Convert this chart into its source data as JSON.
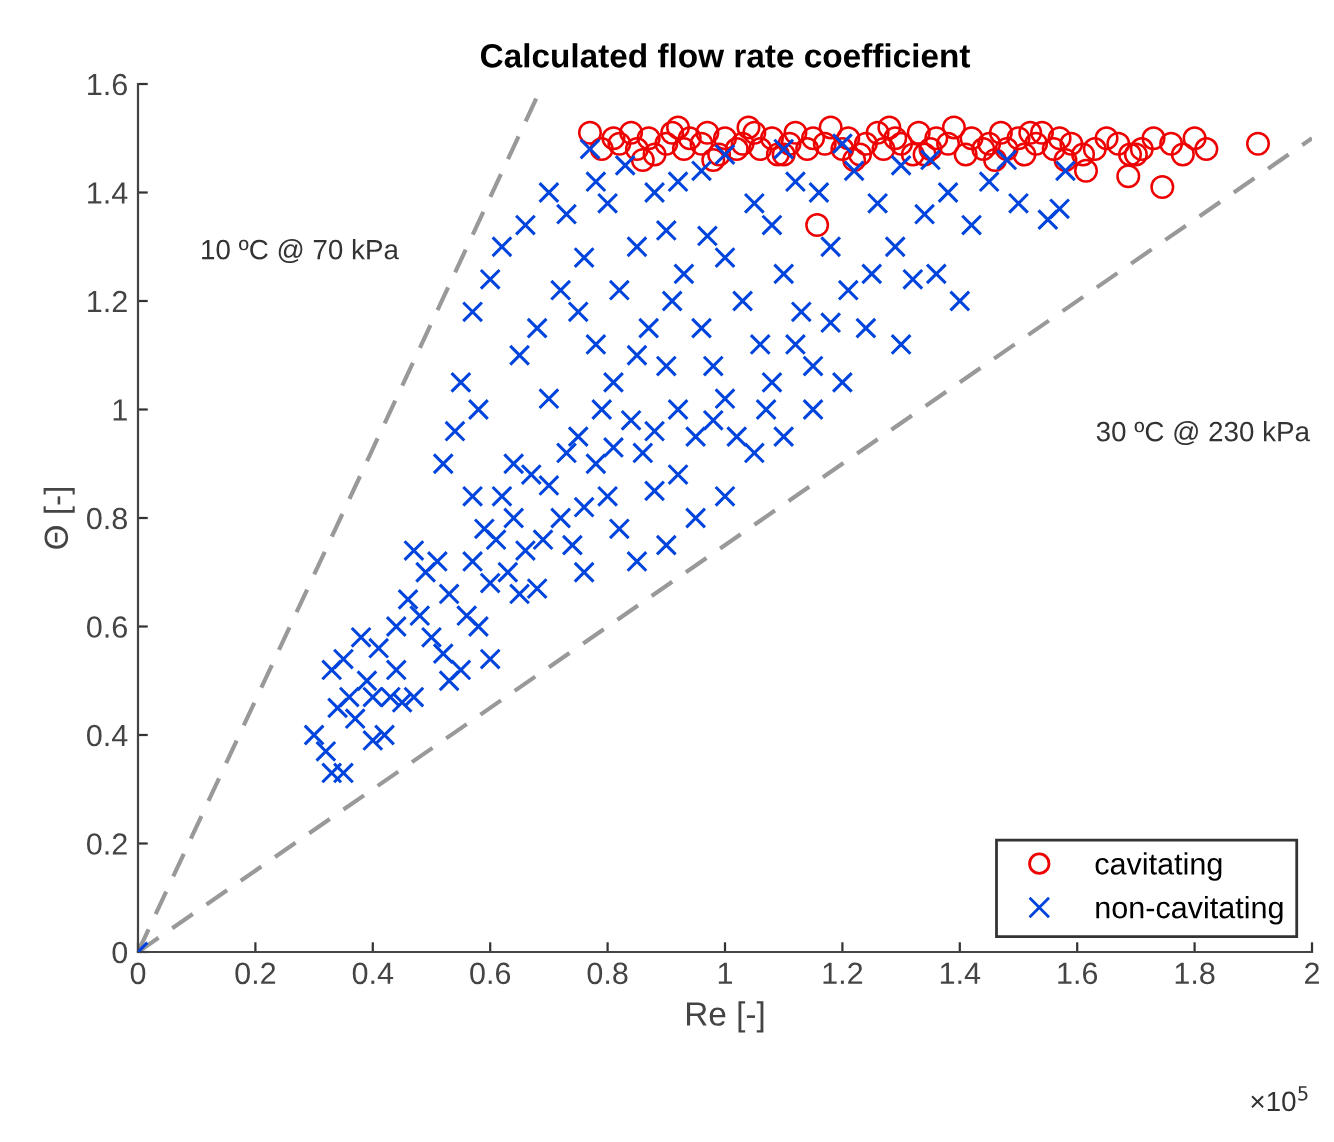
{
  "chart_data": {
    "type": "scatter",
    "title": "Calculated flow rate coefficient",
    "xlabel": "Re [-]",
    "ylabel": "Θ [-]",
    "xlim": [
      0,
      2
    ],
    "xticks": [
      0,
      0.2,
      0.4,
      0.6,
      0.8,
      1,
      1.2,
      1.4,
      1.6,
      1.8,
      2
    ],
    "ylim": [
      0,
      1.6
    ],
    "yticks": [
      0,
      0.2,
      0.4,
      0.6,
      0.8,
      1,
      1.2,
      1.4,
      1.6
    ],
    "grid": false,
    "legend": "bottom right",
    "annotations": [
      "10 ºC @ 70 kPa",
      "30 ºC @ 230 kPa",
      "×10$^{5}$"
    ],
    "series": [
      {
        "name": "cavitating",
        "color": "#ee0000",
        "marker": "circle",
        "x": [
          0.77,
          0.79,
          0.81,
          0.82,
          0.84,
          0.85,
          0.87,
          0.88,
          0.9,
          0.91,
          0.93,
          0.94,
          0.96,
          0.97,
          0.99,
          1.0,
          1.02,
          1.03,
          1.05,
          1.06,
          1.08,
          1.09,
          1.11,
          1.12,
          1.14,
          1.15,
          1.17,
          1.18,
          1.2,
          1.21,
          1.23,
          1.24,
          1.26,
          1.27,
          1.29,
          1.3,
          1.32,
          1.33,
          1.35,
          1.36,
          1.38,
          1.39,
          1.41,
          1.42,
          1.44,
          1.45,
          1.47,
          1.48,
          1.5,
          1.51,
          1.53,
          1.54,
          1.56,
          1.57,
          1.59,
          1.61,
          1.63,
          1.65,
          1.67,
          1.69,
          1.71,
          1.73,
          1.76,
          1.78,
          1.8,
          1.82,
          1.908,
          1.745,
          1.687,
          1.615,
          1.157,
          0.86,
          0.98,
          1.1,
          1.22,
          1.34,
          1.46,
          1.58,
          1.7,
          0.92,
          1.04,
          1.28,
          1.52
        ],
        "values": [
          1.51,
          1.48,
          1.5,
          1.49,
          1.51,
          1.48,
          1.5,
          1.47,
          1.49,
          1.51,
          1.48,
          1.5,
          1.49,
          1.51,
          1.47,
          1.5,
          1.48,
          1.49,
          1.51,
          1.48,
          1.5,
          1.47,
          1.49,
          1.51,
          1.48,
          1.5,
          1.49,
          1.52,
          1.48,
          1.5,
          1.47,
          1.49,
          1.51,
          1.48,
          1.5,
          1.49,
          1.47,
          1.51,
          1.48,
          1.5,
          1.49,
          1.52,
          1.47,
          1.5,
          1.48,
          1.49,
          1.51,
          1.48,
          1.5,
          1.47,
          1.49,
          1.51,
          1.48,
          1.5,
          1.49,
          1.47,
          1.48,
          1.5,
          1.49,
          1.47,
          1.48,
          1.5,
          1.49,
          1.47,
          1.5,
          1.48,
          1.49,
          1.41,
          1.43,
          1.44,
          1.34,
          1.46,
          1.46,
          1.47,
          1.46,
          1.47,
          1.46,
          1.46,
          1.47,
          1.52,
          1.52,
          1.52,
          1.51
        ]
      },
      {
        "name": "non-cavitating",
        "color": "#0044dd",
        "marker": "cross",
        "x": [
          0.3,
          0.32,
          0.33,
          0.35,
          0.34,
          0.36,
          0.33,
          0.35,
          0.37,
          0.4,
          0.42,
          0.39,
          0.41,
          0.43,
          0.45,
          0.47,
          0.44,
          0.46,
          0.48,
          0.5,
          0.52,
          0.53,
          0.55,
          0.49,
          0.47,
          0.51,
          0.53,
          0.56,
          0.58,
          0.6,
          0.57,
          0.59,
          0.61,
          0.63,
          0.65,
          0.62,
          0.64,
          0.66,
          0.68,
          0.67,
          0.7,
          0.72,
          0.74,
          0.76,
          0.73,
          0.75,
          0.78,
          0.8,
          0.82,
          0.79,
          0.81,
          0.84,
          0.86,
          0.88,
          0.85,
          0.87,
          0.9,
          0.92,
          0.95,
          0.91,
          0.93,
          0.96,
          0.98,
          1.0,
          1.02,
          0.97,
          1.0,
          1.03,
          1.06,
          1.08,
          1.05,
          1.08,
          1.1,
          1.13,
          1.15,
          1.12,
          1.16,
          1.18,
          1.21,
          1.24,
          1.22,
          1.26,
          1.29,
          1.32,
          1.34,
          1.38,
          1.42,
          1.45,
          1.5,
          1.55,
          1.57,
          1.58,
          1.48,
          1.35,
          1.3,
          0.57,
          0.6,
          0.62,
          0.66,
          0.7,
          0.73,
          0.77,
          0.78,
          0.8,
          0.83,
          0.88,
          0.92,
          0.96,
          1.0,
          1.1,
          1.2,
          0.55,
          0.58,
          0.52,
          0.54,
          0.65,
          0.68,
          0.72,
          0.75,
          0.7,
          0.76,
          0.85,
          0.9,
          0.82,
          0.78,
          0.95,
          1.0,
          1.05,
          1.1,
          1.15,
          1.2,
          1.3,
          1.4,
          1.36,
          0.9,
          0.85,
          0.92,
          0.88,
          0.98,
          1.07,
          1.12,
          1.18,
          1.25,
          0.81,
          0.76,
          0.69,
          0.64,
          0.6,
          0.57,
          0.44,
          0.38,
          0.4,
          0
        ],
        "values": [
          0.4,
          0.37,
          0.33,
          0.33,
          0.45,
          0.47,
          0.52,
          0.54,
          0.43,
          0.39,
          0.4,
          0.5,
          0.56,
          0.47,
          0.46,
          0.47,
          0.6,
          0.65,
          0.62,
          0.58,
          0.55,
          0.5,
          0.52,
          0.7,
          0.74,
          0.72,
          0.66,
          0.62,
          0.6,
          0.54,
          0.72,
          0.78,
          0.76,
          0.7,
          0.66,
          0.84,
          0.8,
          0.74,
          0.67,
          0.88,
          0.86,
          0.8,
          0.75,
          0.7,
          0.92,
          0.95,
          0.9,
          0.84,
          0.78,
          1.0,
          1.05,
          0.98,
          0.92,
          0.85,
          1.1,
          1.15,
          1.08,
          1.0,
          0.95,
          1.2,
          1.25,
          1.15,
          1.08,
          1.02,
          0.95,
          1.32,
          1.28,
          1.2,
          1.12,
          1.05,
          1.38,
          1.34,
          1.25,
          1.18,
          1.08,
          1.42,
          1.4,
          1.3,
          1.22,
          1.15,
          1.44,
          1.38,
          1.3,
          1.24,
          1.36,
          1.4,
          1.34,
          1.42,
          1.38,
          1.35,
          1.37,
          1.44,
          1.46,
          1.46,
          1.45,
          1.18,
          1.24,
          1.3,
          1.34,
          1.4,
          1.36,
          1.48,
          1.42,
          1.38,
          1.45,
          1.4,
          1.42,
          1.44,
          1.47,
          1.48,
          1.49,
          1.05,
          1.0,
          0.9,
          0.96,
          1.1,
          1.15,
          1.22,
          1.18,
          1.02,
          1.28,
          1.3,
          1.33,
          1.22,
          1.12,
          0.8,
          0.84,
          0.92,
          0.95,
          1.0,
          1.05,
          1.12,
          1.2,
          1.25,
          0.75,
          0.72,
          0.88,
          0.96,
          0.98,
          1.0,
          1.12,
          1.16,
          1.25,
          0.93,
          0.82,
          0.76,
          0.9,
          0.68,
          0.84,
          0.52,
          0.58,
          0.47,
          0
        ]
      },
      {
        "type": "line",
        "color": "#999999",
        "line_style": "dashed",
        "x": [
          0,
          0.69
        ],
        "values": [
          0,
          1.6
        ]
      },
      {
        "type": "line",
        "color": "#999999",
        "line_style": "dashed",
        "x": [
          0,
          2
        ],
        "values": [
          0,
          1.5
        ]
      }
    ]
  }
}
